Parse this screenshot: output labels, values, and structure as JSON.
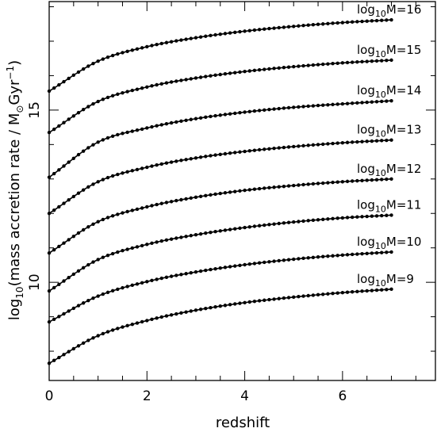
{
  "chart_data": {
    "type": "line",
    "xlabel": "redshift",
    "ylabel": {
      "prefix": "log",
      "prefix_sub": "10",
      "text": "(mass accretion rate / M",
      "sun_symbol": "⊙",
      "unit": "Gyr",
      "unit_sup": "−1",
      "close": ")"
    },
    "xlim": [
      0,
      7.9
    ],
    "ylim": [
      7.15,
      18.15
    ],
    "xticks_major": [
      0,
      2,
      4,
      6
    ],
    "xticks_minor_step": 0.5,
    "yticks_major": [
      10,
      15
    ],
    "yticks_minor_step": 1,
    "grid": false,
    "legend": "none",
    "marker": "dot",
    "x_max": 7.0,
    "label_prefix": "log",
    "label_sub": "10",
    "series": [
      {
        "label_text": "M=9",
        "x": [
          0,
          1,
          2,
          3,
          4,
          5,
          6,
          7
        ],
        "values": [
          7.65,
          8.45,
          8.89,
          9.19,
          9.41,
          9.57,
          9.7,
          9.8
        ]
      },
      {
        "label_text": "M=10",
        "x": [
          0,
          1,
          2,
          3,
          4,
          5,
          6,
          7
        ],
        "values": [
          8.85,
          9.6,
          10.02,
          10.3,
          10.51,
          10.67,
          10.79,
          10.88
        ]
      },
      {
        "label_text": "M=11",
        "x": [
          0,
          1,
          2,
          3,
          4,
          5,
          6,
          7
        ],
        "values": [
          9.75,
          10.66,
          11.1,
          11.38,
          11.59,
          11.75,
          11.87,
          11.95
        ]
      },
      {
        "label_text": "M=12",
        "x": [
          0,
          1,
          2,
          3,
          4,
          5,
          6,
          7
        ],
        "values": [
          10.85,
          11.76,
          12.19,
          12.47,
          12.67,
          12.81,
          12.92,
          13.0
        ]
      },
      {
        "label_text": "M=13",
        "x": [
          0,
          1,
          2,
          3,
          4,
          5,
          6,
          7
        ],
        "values": [
          12.0,
          12.92,
          13.34,
          13.61,
          13.8,
          13.94,
          14.05,
          14.13
        ]
      },
      {
        "label_text": "M=14",
        "x": [
          0,
          1,
          2,
          3,
          4,
          5,
          6,
          7
        ],
        "values": [
          13.05,
          14.07,
          14.48,
          14.75,
          14.94,
          15.08,
          15.18,
          15.27
        ]
      },
      {
        "label_text": "M=15",
        "x": [
          0,
          1,
          2,
          3,
          4,
          5,
          6,
          7
        ],
        "values": [
          14.35,
          15.25,
          15.67,
          15.93,
          16.12,
          16.26,
          16.37,
          16.45
        ]
      },
      {
        "label_text": "M=16",
        "x": [
          0,
          1,
          2,
          3,
          4,
          5,
          6,
          7
        ],
        "values": [
          15.55,
          16.42,
          16.84,
          17.1,
          17.29,
          17.43,
          17.54,
          17.62
        ]
      }
    ]
  }
}
